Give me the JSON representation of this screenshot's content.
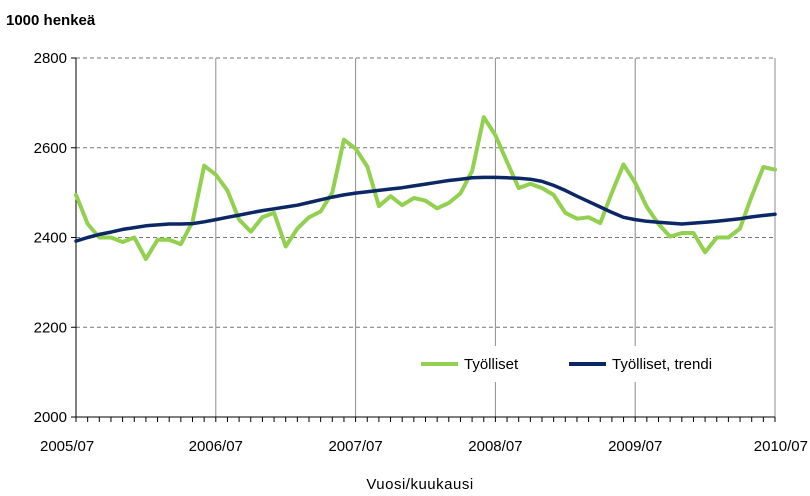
{
  "chart_data": {
    "type": "line",
    "unit_label": "1000 henkeä",
    "xlabel": "Vuosi/kuukausi",
    "ylabel": "",
    "ylim": [
      2000,
      2800
    ],
    "yticks": [
      2000,
      2200,
      2400,
      2600,
      2800
    ],
    "x_range_months": [
      "2005/07",
      "2010/07"
    ],
    "xticks": [
      "2005/07",
      "2006/07",
      "2007/07",
      "2008/07",
      "2009/07",
      "2010/07"
    ],
    "grid": "horizontal dashed at y ticks, vertical solid at x ticks",
    "legend_position": "bottom-right inside plot",
    "series": [
      {
        "name": "Työlliset",
        "color": "#92d050",
        "values": [
          2495,
          2430,
          2400,
          2400,
          2390,
          2400,
          2352,
          2395,
          2395,
          2385,
          2435,
          2560,
          2540,
          2505,
          2440,
          2413,
          2445,
          2455,
          2380,
          2420,
          2445,
          2458,
          2500,
          2618,
          2598,
          2558,
          2470,
          2492,
          2472,
          2488,
          2482,
          2465,
          2477,
          2498,
          2548,
          2668,
          2628,
          2568,
          2510,
          2520,
          2510,
          2495,
          2455,
          2442,
          2445,
          2432,
          2500,
          2563,
          2522,
          2468,
          2430,
          2402,
          2410,
          2410,
          2367,
          2400,
          2400,
          2420,
          2492,
          2557,
          2551
        ]
      },
      {
        "name": "Työlliset, trendi",
        "color": "#0b2765",
        "values": [
          2392,
          2400,
          2407,
          2412,
          2418,
          2422,
          2426,
          2428,
          2430,
          2430,
          2431,
          2435,
          2440,
          2445,
          2450,
          2455,
          2460,
          2464,
          2468,
          2472,
          2478,
          2484,
          2490,
          2495,
          2499,
          2502,
          2505,
          2508,
          2511,
          2515,
          2519,
          2523,
          2527,
          2530,
          2533,
          2534,
          2534,
          2533,
          2532,
          2530,
          2525,
          2516,
          2505,
          2492,
          2480,
          2468,
          2456,
          2445,
          2440,
          2436,
          2434,
          2432,
          2430,
          2432,
          2434,
          2436,
          2439,
          2442,
          2446,
          2449,
          2452
        ]
      }
    ]
  }
}
